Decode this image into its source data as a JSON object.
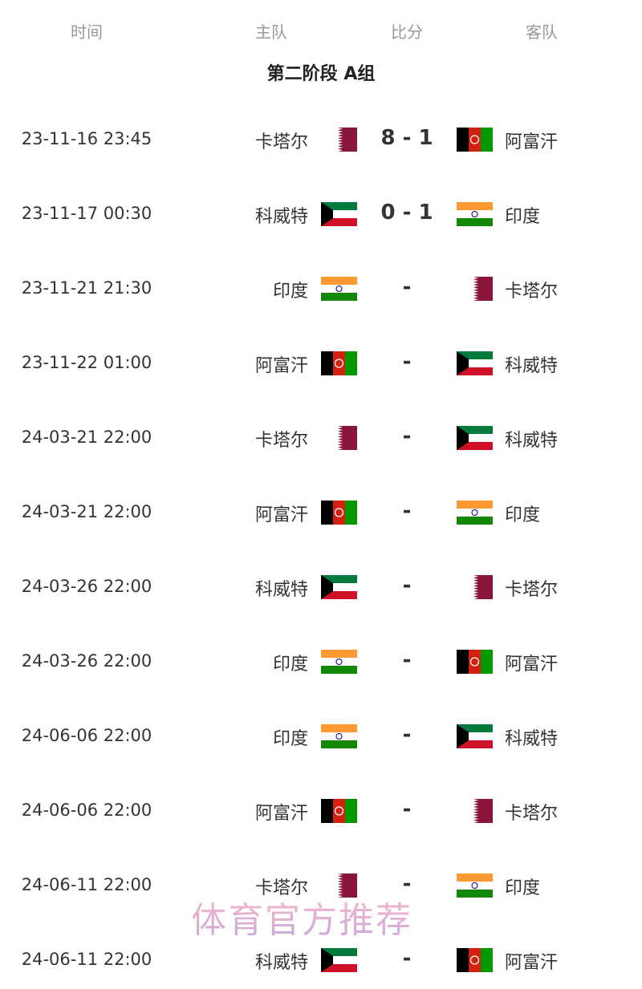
{
  "header": {
    "time": "时间",
    "home": "主队",
    "score": "比分",
    "away": "客队"
  },
  "title": "第二阶段 A组",
  "matches": [
    {
      "time": "23-11-16 23:45",
      "home": "卡塔尔",
      "home_flag": "qatar",
      "score": "8 - 1",
      "away": "阿富汗",
      "away_flag": "afghanistan"
    },
    {
      "time": "23-11-17 00:30",
      "home": "科威特",
      "home_flag": "kuwait",
      "score": "0 - 1",
      "away": "印度",
      "away_flag": "india"
    },
    {
      "time": "23-11-21 21:30",
      "home": "印度",
      "home_flag": "india",
      "score": "-",
      "away": "卡塔尔",
      "away_flag": "qatar"
    },
    {
      "time": "23-11-22 01:00",
      "home": "阿富汗",
      "home_flag": "afghanistan",
      "score": "-",
      "away": "科威特",
      "away_flag": "kuwait"
    },
    {
      "time": "24-03-21 22:00",
      "home": "卡塔尔",
      "home_flag": "qatar",
      "score": "-",
      "away": "科威特",
      "away_flag": "kuwait"
    },
    {
      "time": "24-03-21 22:00",
      "home": "阿富汗",
      "home_flag": "afghanistan",
      "score": "-",
      "away": "印度",
      "away_flag": "india"
    },
    {
      "time": "24-03-26 22:00",
      "home": "科威特",
      "home_flag": "kuwait",
      "score": "-",
      "away": "卡塔尔",
      "away_flag": "qatar"
    },
    {
      "time": "24-03-26 22:00",
      "home": "印度",
      "home_flag": "india",
      "score": "-",
      "away": "阿富汗",
      "away_flag": "afghanistan"
    },
    {
      "time": "24-06-06 22:00",
      "home": "印度",
      "home_flag": "india",
      "score": "-",
      "away": "科威特",
      "away_flag": "kuwait"
    },
    {
      "time": "24-06-06 22:00",
      "home": "阿富汗",
      "home_flag": "afghanistan",
      "score": "-",
      "away": "卡塔尔",
      "away_flag": "qatar"
    },
    {
      "time": "24-06-11 22:00",
      "home": "卡塔尔",
      "home_flag": "qatar",
      "score": "-",
      "away": "印度",
      "away_flag": "india"
    },
    {
      "time": "24-06-11 22:00",
      "home": "科威特",
      "home_flag": "kuwait",
      "score": "-",
      "away": "阿富汗",
      "away_flag": "afghanistan"
    }
  ],
  "watermark": "体育官方推荐",
  "colors": {
    "qatar": "#8a1538",
    "kuwait_green": "#007a3d",
    "kuwait_red": "#ce1126",
    "india_saffron": "#ff9933",
    "india_green": "#138808",
    "afghan_red": "#d32011",
    "afghan_green": "#009a00"
  }
}
